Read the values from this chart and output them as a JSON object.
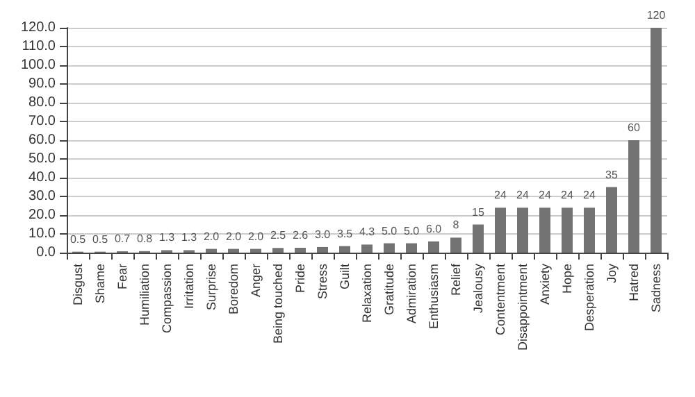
{
  "chart_data": {
    "type": "bar",
    "categories": [
      "Disgust",
      "Shame",
      "Fear",
      "Humiliation",
      "Compassion",
      "Irritation",
      "Surprise",
      "Boredom",
      "Anger",
      "Being touched",
      "Pride",
      "Stress",
      "Guilt",
      "Relaxation",
      "Gratitude",
      "Admiration",
      "Enthusiasm",
      "Relief",
      "Jealousy",
      "Contentment",
      "Disappointment",
      "Anxiety",
      "Hope",
      "Desperation",
      "Joy",
      "Hatred",
      "Sadness"
    ],
    "values": [
      0.5,
      0.5,
      0.7,
      0.8,
      1.3,
      1.3,
      2.0,
      2.0,
      2.0,
      2.5,
      2.6,
      3.0,
      3.5,
      4.3,
      5.0,
      5.0,
      6.0,
      8,
      15,
      24,
      24,
      24,
      24,
      24,
      35,
      60,
      120
    ],
    "value_labels": [
      "0.5",
      "0.5",
      "0.7",
      "0.8",
      "1.3",
      "1.3",
      "2.0",
      "2.0",
      "2.0",
      "2.5",
      "2.6",
      "3.0",
      "3.5",
      "4.3",
      "5.0",
      "5.0",
      "6.0",
      "8",
      "15",
      "24",
      "24",
      "24",
      "24",
      "24",
      "35",
      "60",
      "120"
    ],
    "color": "#737373",
    "ylim": [
      0,
      120
    ],
    "yticks": [
      {
        "value": 0,
        "label": "0.0"
      },
      {
        "value": 10,
        "label": "10.0"
      },
      {
        "value": 20,
        "label": "20.0"
      },
      {
        "value": 30,
        "label": "30.0"
      },
      {
        "value": 40,
        "label": "40.0"
      },
      {
        "value": 50,
        "label": "50.0"
      },
      {
        "value": 60,
        "label": "60.0"
      },
      {
        "value": 70,
        "label": "70.0"
      },
      {
        "value": 80,
        "label": "80.0"
      },
      {
        "value": 90,
        "label": "90.0"
      },
      {
        "value": 100,
        "label": "100.0"
      },
      {
        "value": 110,
        "label": "110.0"
      },
      {
        "value": 120,
        "label": "120.0"
      }
    ],
    "grid": "y"
  }
}
